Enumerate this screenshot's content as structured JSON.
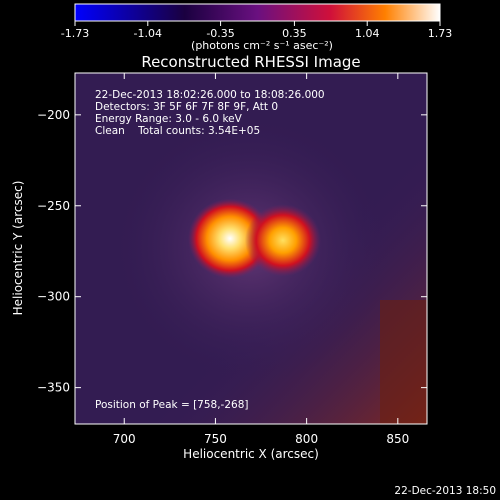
{
  "chart_data": {
    "type": "heatmap",
    "title": "Reconstructed RHESSI Image",
    "colorbar": {
      "ticks": [
        "-1.73",
        "-1.04",
        "-0.35",
        "0.35",
        "1.04",
        "1.73"
      ],
      "range": [
        -1.73,
        1.73
      ],
      "units": "(photons cm⁻² s⁻¹ asec⁻²)"
    },
    "xlabel": "Heliocentric X (arcsec)",
    "ylabel": "Heliocentric Y (arcsec)",
    "xlim": [
      673,
      866
    ],
    "ylim": [
      -370,
      -177
    ],
    "x_ticks": [
      700,
      750,
      800,
      850
    ],
    "y_ticks": [
      -200,
      -250,
      -300,
      -350
    ],
    "annotations": [
      "22-Dec-2013 18:02:26.000 to 18:08:26.000",
      "Detectors: 3F 5F 6F 7F 8F 9F, Att 0",
      "Energy Range: 3.0 - 6.0 keV",
      "Clean    Total counts: 3.54E+05"
    ],
    "peak_label": "Position of Peak = [758,-268]",
    "sources": [
      {
        "x": 758,
        "y": -268,
        "value": 1.73
      },
      {
        "x": 787,
        "y": -269,
        "value": 1.35
      }
    ],
    "background_value": 0.12,
    "timestamp": "22-Dec-2013 18:50"
  },
  "colors": {
    "background": "#000000",
    "text": "#ffffff",
    "colormap": [
      "#0000ff",
      "#2a0040",
      "#6a1080",
      "#d0103a",
      "#ff8000",
      "#ffffff"
    ]
  }
}
